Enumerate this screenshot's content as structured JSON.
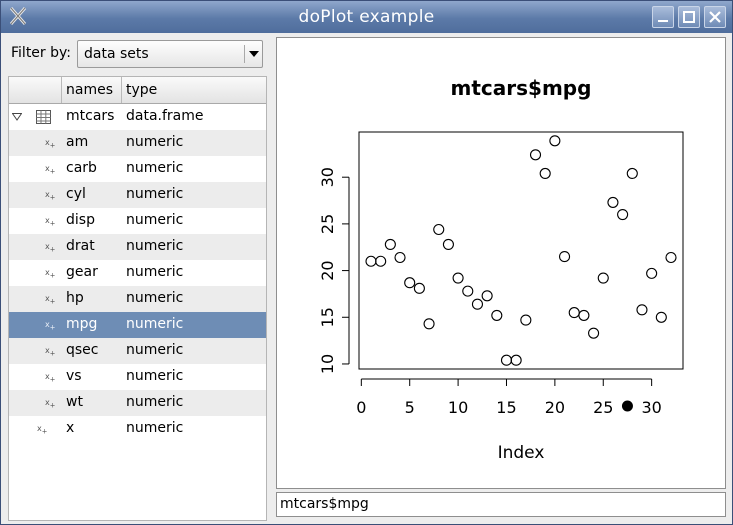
{
  "window": {
    "title": "doPlot example"
  },
  "filter": {
    "label": "Filter by:",
    "value": "data sets"
  },
  "tree": {
    "headers": [
      "",
      "names",
      "type"
    ],
    "root": {
      "name": "mtcars",
      "type": "data.frame"
    },
    "rows": [
      {
        "name": "am",
        "type": "numeric"
      },
      {
        "name": "carb",
        "type": "numeric"
      },
      {
        "name": "cyl",
        "type": "numeric"
      },
      {
        "name": "disp",
        "type": "numeric"
      },
      {
        "name": "drat",
        "type": "numeric"
      },
      {
        "name": "gear",
        "type": "numeric"
      },
      {
        "name": "hp",
        "type": "numeric"
      },
      {
        "name": "mpg",
        "type": "numeric",
        "selected": true
      },
      {
        "name": "qsec",
        "type": "numeric"
      },
      {
        "name": "vs",
        "type": "numeric"
      },
      {
        "name": "wt",
        "type": "numeric"
      }
    ],
    "extra": {
      "name": "x",
      "type": "numeric"
    }
  },
  "command": {
    "value": "mtcars$mpg"
  },
  "chart_data": {
    "type": "scatter",
    "title": "mtcars$mpg",
    "xlabel": "Index",
    "ylabel": "",
    "xlim": [
      0,
      32
    ],
    "ylim": [
      10.4,
      33.9
    ],
    "xticks": [
      0,
      5,
      10,
      15,
      20,
      25,
      30
    ],
    "yticks": [
      10,
      15,
      20,
      25,
      30
    ],
    "x": [
      1,
      2,
      3,
      4,
      5,
      6,
      7,
      8,
      9,
      10,
      11,
      12,
      13,
      14,
      15,
      16,
      17,
      18,
      19,
      20,
      21,
      22,
      23,
      24,
      25,
      26,
      27,
      28,
      29,
      30,
      31,
      32
    ],
    "values": [
      21.0,
      21.0,
      22.8,
      21.4,
      18.7,
      18.1,
      14.3,
      24.4,
      22.8,
      19.2,
      17.8,
      16.4,
      17.3,
      15.2,
      10.4,
      10.4,
      14.7,
      32.4,
      30.4,
      33.9,
      21.5,
      15.5,
      15.2,
      13.3,
      19.2,
      27.3,
      26.0,
      30.4,
      15.8,
      19.7,
      15.0,
      21.4
    ],
    "marker": {
      "x": 27.5,
      "y": 5.5
    },
    "colors": {
      "point": "#000000",
      "selection": "#6e8db5"
    }
  }
}
